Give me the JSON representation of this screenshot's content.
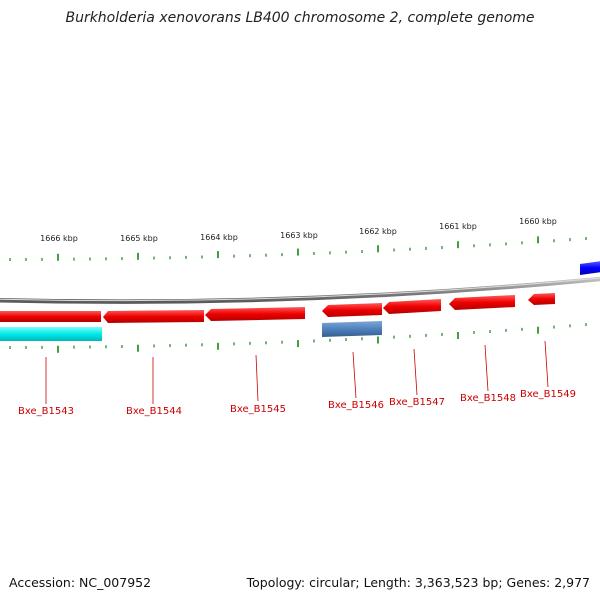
{
  "title": "Burkholderia xenovorans LB400 chromosome 2, complete genome",
  "ruler": {
    "labels": [
      "1666 kbp",
      "1665 kbp",
      "1664 kbp",
      "1663 kbp",
      "1662 kbp",
      "1661 kbp",
      "1660 kbp"
    ]
  },
  "genes": [
    {
      "label": "Bxe_B1543",
      "color": "#ff0000",
      "strand": "reverse"
    },
    {
      "label": "Bxe_B1544",
      "color": "#ff0000",
      "strand": "reverse"
    },
    {
      "label": "Bxe_B1545",
      "color": "#ff0000",
      "strand": "reverse"
    },
    {
      "label": "Bxe_B1546",
      "color": "#ff0000",
      "strand": "reverse"
    },
    {
      "label": "Bxe_B1547",
      "color": "#ff0000",
      "strand": "reverse"
    },
    {
      "label": "Bxe_B1548",
      "color": "#ff0000",
      "strand": "reverse"
    },
    {
      "label": "Bxe_B1549",
      "color": "#ff0000",
      "strand": "reverse"
    }
  ],
  "features": [
    {
      "name": "cyan-feature",
      "color": "#00e5e5"
    },
    {
      "name": "steelblue-feature",
      "color": "#4f81bd"
    },
    {
      "name": "blue-feature",
      "color": "#0000ff"
    }
  ],
  "colors": {
    "backbone": "#8c8c8c",
    "tick": "#118811",
    "gene_label": "#cc0000",
    "ruler_label": "#222222"
  },
  "footer": {
    "accession": "Accession: NC_007952",
    "summary": "Topology: circular; Length: 3,363,523 bp; Genes: 2,977"
  }
}
